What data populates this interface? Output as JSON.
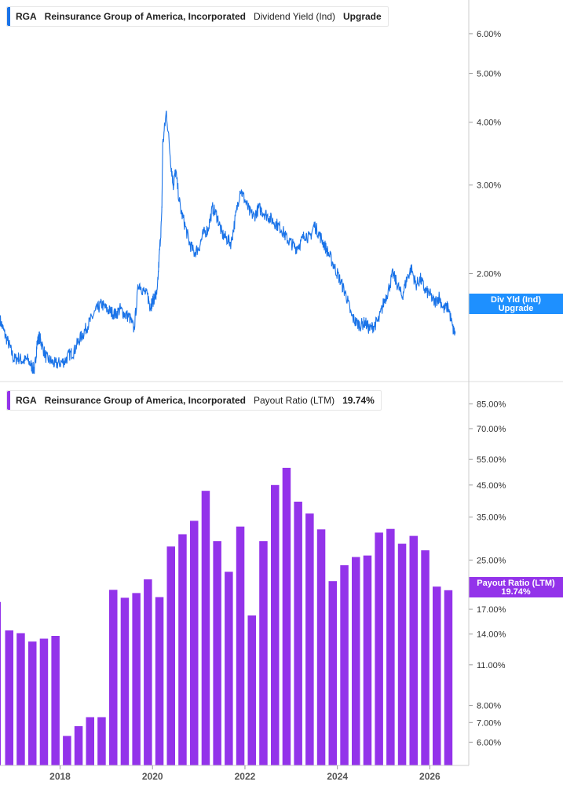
{
  "top_legend": {
    "ticker": "RGA",
    "company": "Reinsurance Group of America, Incorporated",
    "metric": "Dividend Yield (Ind)",
    "value": "Upgrade",
    "color": "#1a73e8"
  },
  "bottom_legend": {
    "ticker": "RGA",
    "company": "Reinsurance Group of America, Incorporated",
    "metric": "Payout Ratio (LTM)",
    "value": "19.74%",
    "color": "#9333ea"
  },
  "top_tag": {
    "line1": "Div Yld (Ind)",
    "line2": "Upgrade",
    "color": "#1e90ff"
  },
  "bottom_tag": {
    "line1": "Payout Ratio (LTM)",
    "line2": "19.74%",
    "color": "#9333ea"
  },
  "chart_data": [
    {
      "type": "line",
      "title": "",
      "scale": "log",
      "ylim": [
        1.22,
        7.0
      ],
      "xlim": [
        2016.7,
        2026.9
      ],
      "y_ticks": [
        {
          "value": 6,
          "label": "6.00%"
        },
        {
          "value": 5,
          "label": "5.00%"
        },
        {
          "value": 4,
          "label": "4.00%"
        },
        {
          "value": 3,
          "label": "3.00%"
        },
        {
          "value": 2,
          "label": "2.00%"
        }
      ],
      "series": [
        {
          "x": [
            2016.7,
            2016.8,
            2016.9,
            2017.0,
            2017.1,
            2017.2,
            2017.3,
            2017.4,
            2017.45,
            2017.5,
            2017.55,
            2017.6,
            2017.7,
            2017.8,
            2017.9,
            2018.0,
            2018.1,
            2018.2,
            2018.3,
            2018.4,
            2018.5,
            2018.6,
            2018.7,
            2018.8,
            2018.9,
            2019.0,
            2019.1,
            2019.2,
            2019.3,
            2019.4,
            2019.5,
            2019.6,
            2019.7,
            2019.8,
            2019.9,
            2019.95,
            2020.0,
            2020.05,
            2020.1,
            2020.15,
            2020.2,
            2020.22,
            2020.3,
            2020.4,
            2020.45,
            2020.5,
            2020.6,
            2020.7,
            2020.8,
            2020.9,
            2021.0,
            2021.1,
            2021.2,
            2021.3,
            2021.4,
            2021.5,
            2021.6,
            2021.7,
            2021.8,
            2021.9,
            2022.0,
            2022.1,
            2022.2,
            2022.3,
            2022.4,
            2022.5,
            2022.6,
            2022.7,
            2022.8,
            2022.9,
            2023.0,
            2023.1,
            2023.2,
            2023.3,
            2023.4,
            2023.5,
            2023.6,
            2023.7,
            2023.8,
            2023.9,
            2024.0,
            2024.1,
            2024.2,
            2024.3,
            2024.4,
            2024.5,
            2024.6,
            2024.7,
            2024.8,
            2024.9,
            2025.0,
            2025.1,
            2025.2,
            2025.3,
            2025.4,
            2025.5,
            2025.6,
            2025.7,
            2025.8,
            2025.9,
            2026.0,
            2026.1,
            2026.2,
            2026.3,
            2026.4,
            2026.5,
            2026.55
          ],
          "y": [
            1.62,
            1.52,
            1.44,
            1.35,
            1.36,
            1.34,
            1.35,
            1.3,
            1.29,
            1.45,
            1.5,
            1.45,
            1.36,
            1.34,
            1.32,
            1.33,
            1.34,
            1.38,
            1.4,
            1.47,
            1.52,
            1.58,
            1.64,
            1.7,
            1.74,
            1.7,
            1.68,
            1.66,
            1.7,
            1.66,
            1.64,
            1.55,
            1.92,
            1.85,
            1.8,
            1.72,
            1.76,
            1.8,
            1.82,
            2.2,
            2.6,
            3.6,
            4.2,
            3.3,
            3.0,
            3.2,
            2.7,
            2.5,
            2.3,
            2.2,
            2.25,
            2.4,
            2.45,
            2.7,
            2.6,
            2.4,
            2.35,
            2.3,
            2.6,
            2.95,
            2.8,
            2.65,
            2.6,
            2.7,
            2.65,
            2.6,
            2.55,
            2.5,
            2.45,
            2.35,
            2.3,
            2.25,
            2.3,
            2.4,
            2.35,
            2.5,
            2.4,
            2.3,
            2.2,
            2.1,
            2.0,
            1.9,
            1.8,
            1.65,
            1.6,
            1.58,
            1.6,
            1.55,
            1.58,
            1.62,
            1.75,
            1.85,
            2.0,
            1.9,
            1.8,
            1.95,
            2.05,
            1.9,
            1.95,
            1.85,
            1.82,
            1.75,
            1.8,
            1.7,
            1.72,
            1.55,
            1.52
          ]
        }
      ]
    },
    {
      "type": "bar",
      "title": "",
      "scale": "log",
      "ylim": [
        5.0,
        100
      ],
      "xlim": [
        2016.7,
        2026.9
      ],
      "y_ticks": [
        {
          "value": 85,
          "label": "85.00%"
        },
        {
          "value": 70,
          "label": "70.00%"
        },
        {
          "value": 55,
          "label": "55.00%"
        },
        {
          "value": 45,
          "label": "45.00%"
        },
        {
          "value": 35,
          "label": "35.00%"
        },
        {
          "value": 25,
          "label": "25.00%"
        },
        {
          "value": 17,
          "label": "17.00%"
        },
        {
          "value": 14,
          "label": "14.00%"
        },
        {
          "value": 11,
          "label": "11.00%"
        },
        {
          "value": 8,
          "label": "8.00%"
        },
        {
          "value": 7,
          "label": "7.00%"
        },
        {
          "value": 6,
          "label": "6.00%"
        }
      ],
      "x_ticks": [
        {
          "value": 2018.0,
          "label": "2018"
        },
        {
          "value": 2020.0,
          "label": "2020"
        },
        {
          "value": 2022.0,
          "label": "2022"
        },
        {
          "value": 2024.0,
          "label": "2024"
        },
        {
          "value": 2026.0,
          "label": "2026"
        }
      ],
      "bars": [
        {
          "x": 2016.9,
          "value": 14.4
        },
        {
          "x": 2017.15,
          "value": 14.1
        },
        {
          "x": 2017.4,
          "value": 13.2
        },
        {
          "x": 2017.65,
          "value": 13.5
        },
        {
          "x": 2017.9,
          "value": 13.8
        },
        {
          "x": 2018.15,
          "value": 6.3
        },
        {
          "x": 2018.4,
          "value": 6.8
        },
        {
          "x": 2018.65,
          "value": 7.3
        },
        {
          "x": 2018.9,
          "value": 7.3
        },
        {
          "x": 2019.15,
          "value": 19.8
        },
        {
          "x": 2019.4,
          "value": 18.6
        },
        {
          "x": 2019.65,
          "value": 19.3
        },
        {
          "x": 2019.9,
          "value": 21.5
        },
        {
          "x": 2020.15,
          "value": 18.7
        },
        {
          "x": 2020.4,
          "value": 27.8
        },
        {
          "x": 2020.65,
          "value": 30.6
        },
        {
          "x": 2020.9,
          "value": 34.0
        },
        {
          "x": 2021.15,
          "value": 43.0
        },
        {
          "x": 2021.4,
          "value": 29.0
        },
        {
          "x": 2021.65,
          "value": 22.8
        },
        {
          "x": 2021.9,
          "value": 32.5
        },
        {
          "x": 2022.15,
          "value": 16.2
        },
        {
          "x": 2022.4,
          "value": 29.0
        },
        {
          "x": 2022.65,
          "value": 45.0
        },
        {
          "x": 2022.9,
          "value": 51.5
        },
        {
          "x": 2023.15,
          "value": 39.5
        },
        {
          "x": 2023.4,
          "value": 36.0
        },
        {
          "x": 2023.65,
          "value": 31.8
        },
        {
          "x": 2023.9,
          "value": 21.2
        },
        {
          "x": 2024.15,
          "value": 24.0
        },
        {
          "x": 2024.4,
          "value": 25.6
        },
        {
          "x": 2024.65,
          "value": 25.9
        },
        {
          "x": 2024.9,
          "value": 31.0
        },
        {
          "x": 2025.15,
          "value": 31.9
        },
        {
          "x": 2025.4,
          "value": 28.4
        },
        {
          "x": 2025.65,
          "value": 30.2
        },
        {
          "x": 2025.9,
          "value": 27.0
        },
        {
          "x": 2026.15,
          "value": 20.3
        },
        {
          "x": 2026.4,
          "value": 19.74
        }
      ]
    }
  ]
}
